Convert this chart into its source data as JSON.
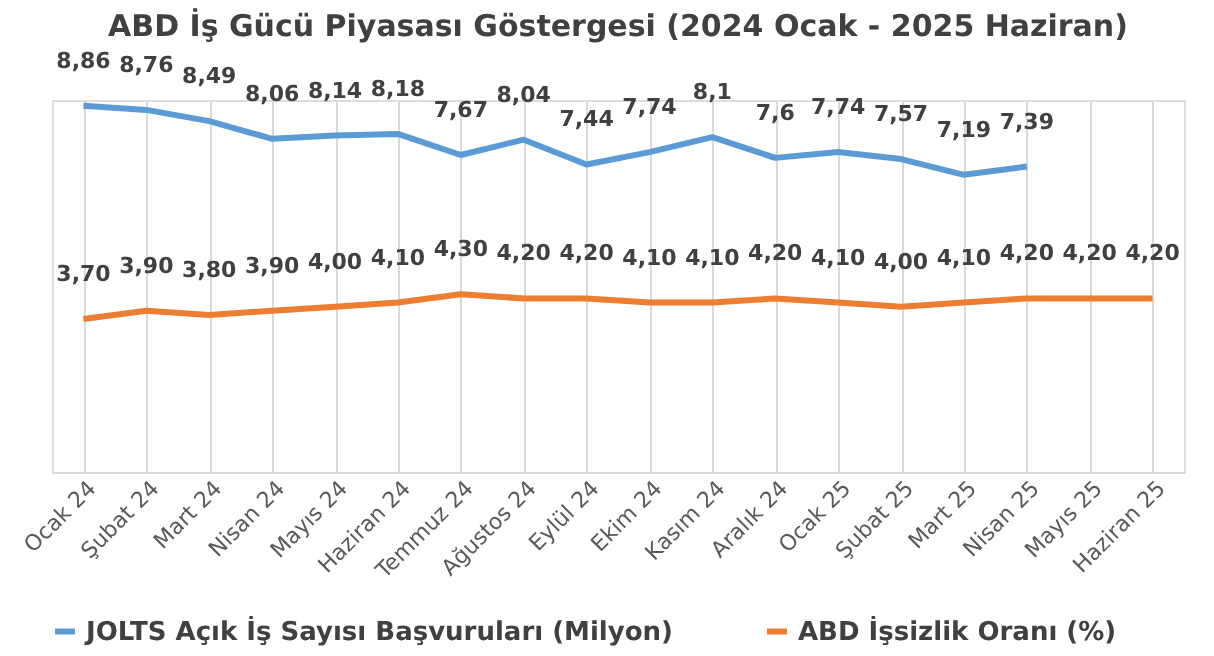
{
  "chart_data": {
    "type": "line",
    "title": "ABD İş Gücü Piyasası Göstergesi (2024 Ocak - 2025 Haziran)",
    "categories": [
      "Ocak 24",
      "Şubat 24",
      "Mart 24",
      "Nisan 24",
      "Mayıs 24",
      "Haziran 24",
      "Temmuz 24",
      "Ağustos 24",
      "Eylül 24",
      "Ekim 24",
      "Kasım 24",
      "Aralık 24",
      "Ocak 25",
      "Şubat 25",
      "Mart 25",
      "Nisan 25",
      "Mayıs 25",
      "Haziran 25"
    ],
    "series": [
      {
        "name": "JOLTS Açık İş Sayısı Başvuruları (Milyon)",
        "color": "#5b9bd5",
        "values": [
          8.86,
          8.76,
          8.49,
          8.06,
          8.14,
          8.18,
          7.67,
          8.04,
          7.44,
          7.74,
          8.1,
          7.6,
          7.74,
          7.57,
          7.19,
          7.39,
          null,
          null
        ],
        "value_labels": [
          "8,86",
          "8,76",
          "8,49",
          "8,06",
          "8,14",
          "8,18",
          "7,67",
          "8,04",
          "7,44",
          "7,74",
          "8,1",
          "7,6",
          "7,74",
          "7,57",
          "7,19",
          "7,39",
          null,
          null
        ]
      },
      {
        "name": "ABD İşsizlik Oranı (%)",
        "color": "#ed7d31",
        "values": [
          3.7,
          3.9,
          3.8,
          3.9,
          4.0,
          4.1,
          4.3,
          4.2,
          4.2,
          4.1,
          4.1,
          4.2,
          4.1,
          4.0,
          4.1,
          4.2,
          4.2,
          4.2
        ],
        "value_labels": [
          "3,70",
          "3,90",
          "3,80",
          "3,90",
          "4,00",
          "4,10",
          "4,30",
          "4,20",
          "4,20",
          "4,10",
          "4,10",
          "4,20",
          "4,10",
          "4,00",
          "4,10",
          "4,20",
          "4,20",
          "4,20"
        ]
      }
    ],
    "grid": "x",
    "legend": "bottom",
    "marker": "none",
    "line_style": "solid",
    "tick_labels": "x"
  }
}
